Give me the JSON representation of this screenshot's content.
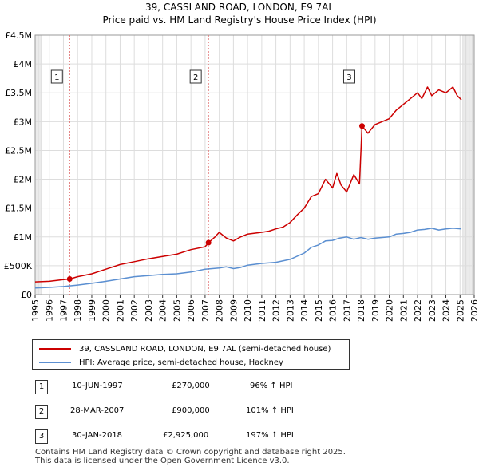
{
  "title_line1": "39, CASSLAND ROAD, LONDON, E9 7AL",
  "title_line2": "Price paid vs. HM Land Registry's House Price Index (HPI)",
  "chart_data": {
    "type": "line",
    "title": "39, CASSLAND ROAD, LONDON, E9 7AL",
    "subtitle": "Price paid vs. HM Land Registry's House Price Index (HPI)",
    "xlabel": "",
    "ylabel": "",
    "xlim": [
      1995,
      2026
    ],
    "ylim": [
      0,
      4500000
    ],
    "y_ticks": [
      0,
      500000,
      1000000,
      1500000,
      2000000,
      2500000,
      3000000,
      3500000,
      4000000,
      4500000
    ],
    "y_tick_labels": [
      "£0",
      "£500K",
      "£1M",
      "£1.5M",
      "£2M",
      "£2.5M",
      "£3M",
      "£3.5M",
      "£4M",
      "£4.5M"
    ],
    "x_ticks": [
      1995,
      1996,
      1997,
      1998,
      1999,
      2000,
      2001,
      2002,
      2003,
      2004,
      2005,
      2006,
      2007,
      2008,
      2009,
      2010,
      2011,
      2012,
      2013,
      2014,
      2015,
      2016,
      2017,
      2018,
      2019,
      2020,
      2021,
      2022,
      2023,
      2024,
      2025,
      2026
    ],
    "x_tick_labels": [
      "1995",
      "1996",
      "1997",
      "1998",
      "1999",
      "2000",
      "2001",
      "2002",
      "2003",
      "2004",
      "2005",
      "2006",
      "2007",
      "2008",
      "2009",
      "2010",
      "2011",
      "2012",
      "2013",
      "2014",
      "2015",
      "2016",
      "2017",
      "2018",
      "2019",
      "2020",
      "2021",
      "2022",
      "2023",
      "2024",
      "2025",
      "2026"
    ],
    "shaded_regions": [
      [
        1995,
        1995.5
      ],
      [
        2025.2,
        2026
      ]
    ],
    "series": [
      {
        "name": "39, CASSLAND ROAD, LONDON, E9 7AL (semi-detached house)",
        "color": "#cc0000",
        "x": [
          1995,
          1996,
          1997,
          1997.44,
          1998,
          1999,
          2000,
          2001,
          2002,
          2003,
          2004,
          2005,
          2006,
          2007,
          2007.24,
          2007.7,
          2008,
          2008.5,
          2009,
          2009.5,
          2010,
          2011,
          2011.5,
          2012,
          2012.5,
          2013,
          2013.5,
          2014,
          2014.5,
          2015,
          2015.5,
          2016,
          2016.3,
          2016.6,
          2017,
          2017.5,
          2017.9,
          2018.08,
          2018.5,
          2019,
          2019.5,
          2020,
          2020.5,
          2021,
          2021.5,
          2022,
          2022.3,
          2022.7,
          2023,
          2023.5,
          2024,
          2024.5,
          2024.8,
          2025.1
        ],
        "y": [
          220000,
          230000,
          260000,
          270000,
          310000,
          360000,
          440000,
          520000,
          570000,
          620000,
          660000,
          700000,
          780000,
          830000,
          900000,
          1000000,
          1080000,
          980000,
          930000,
          1000000,
          1050000,
          1080000,
          1100000,
          1140000,
          1170000,
          1250000,
          1380000,
          1500000,
          1700000,
          1750000,
          2000000,
          1850000,
          2100000,
          1900000,
          1780000,
          2080000,
          1920000,
          2925000,
          2800000,
          2950000,
          3000000,
          3050000,
          3200000,
          3300000,
          3400000,
          3500000,
          3400000,
          3600000,
          3450000,
          3550000,
          3500000,
          3600000,
          3450000,
          3380000
        ]
      },
      {
        "name": "HPI: Average price, semi-detached house, Hackney",
        "color": "#5b8fd1",
        "x": [
          1995,
          1996,
          1997,
          1998,
          1999,
          2000,
          2001,
          2002,
          2003,
          2004,
          2005,
          2006,
          2007,
          2008,
          2008.5,
          2009,
          2009.5,
          2010,
          2011,
          2012,
          2013,
          2014,
          2014.5,
          2015,
          2015.5,
          2016,
          2016.5,
          2017,
          2017.5,
          2018,
          2018.5,
          2019,
          2019.5,
          2020,
          2020.5,
          2021,
          2021.5,
          2022,
          2022.5,
          2023,
          2023.5,
          2024,
          2024.5,
          2025.1
        ],
        "y": [
          115000,
          125000,
          140000,
          165000,
          195000,
          230000,
          270000,
          310000,
          330000,
          350000,
          360000,
          390000,
          440000,
          460000,
          480000,
          450000,
          470000,
          510000,
          540000,
          560000,
          610000,
          720000,
          820000,
          860000,
          930000,
          940000,
          980000,
          1000000,
          960000,
          990000,
          960000,
          980000,
          990000,
          1000000,
          1050000,
          1060000,
          1080000,
          1120000,
          1130000,
          1150000,
          1120000,
          1140000,
          1150000,
          1140000
        ]
      }
    ],
    "sales": [
      {
        "label": "1",
        "x": 1997.44,
        "y": 270000
      },
      {
        "label": "2",
        "x": 2007.24,
        "y": 900000
      },
      {
        "label": "3",
        "x": 2018.08,
        "y": 2925000
      }
    ]
  },
  "legend": {
    "property_label": "39, CASSLAND ROAD, LONDON, E9 7AL (semi-detached house)",
    "hpi_label": "HPI: Average price, semi-detached house, Hackney",
    "property_color": "#cc0000",
    "hpi_color": "#5b8fd1"
  },
  "transactions": [
    {
      "num": "1",
      "date": "10-JUN-1997",
      "price": "£270,000",
      "hpi": "96% ↑ HPI"
    },
    {
      "num": "2",
      "date": "28-MAR-2007",
      "price": "£900,000",
      "hpi": "101% ↑ HPI"
    },
    {
      "num": "3",
      "date": "30-JAN-2018",
      "price": "£2,925,000",
      "hpi": "197% ↑ HPI"
    }
  ],
  "footer": {
    "line1": "Contains HM Land Registry data © Crown copyright and database right 2025.",
    "line2": "This data is licensed under the Open Government Licence v3.0."
  }
}
